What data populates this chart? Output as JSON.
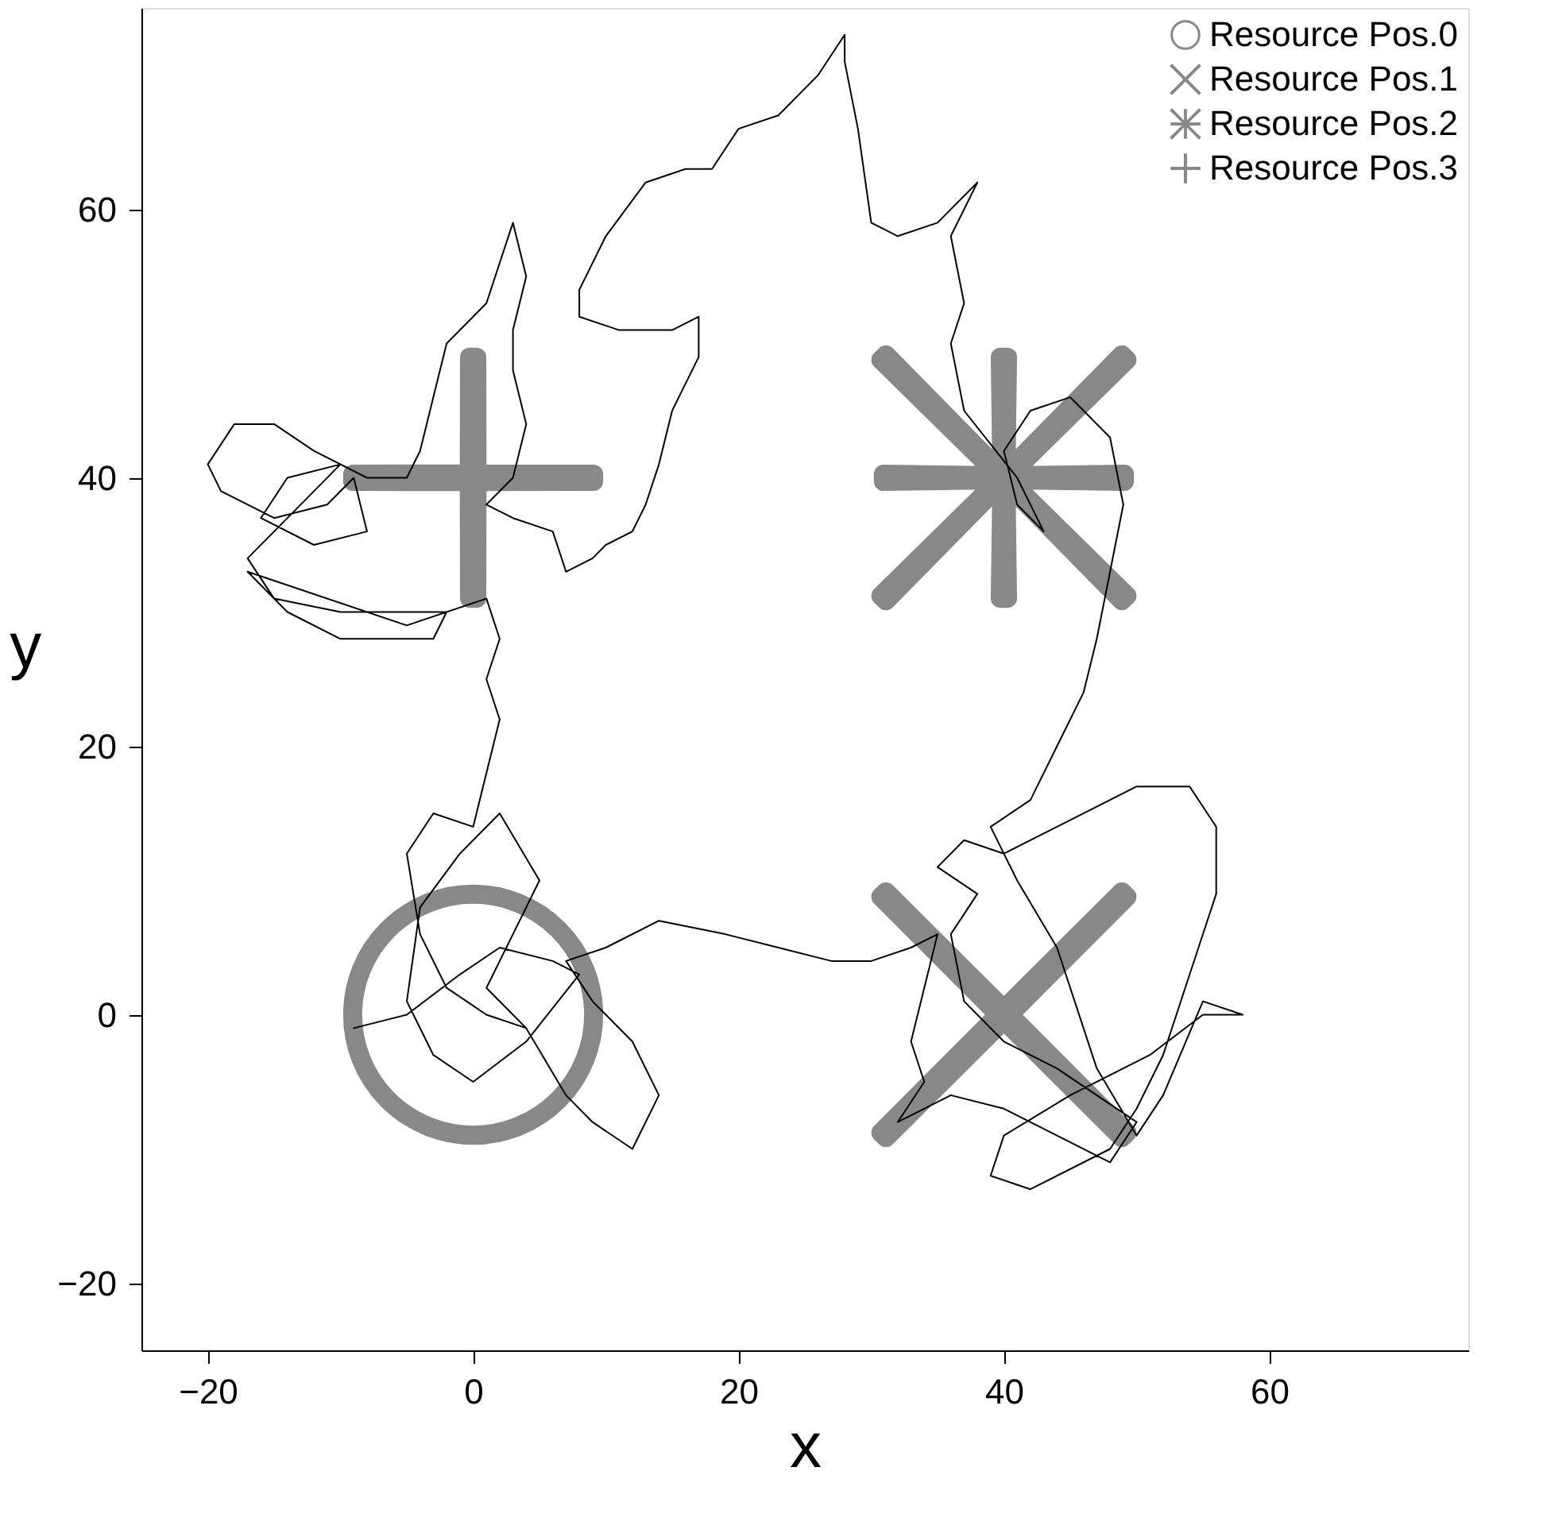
{
  "chart_data": {
    "type": "line",
    "xlabel": "x",
    "ylabel": "y",
    "xlim": [
      -25,
      75
    ],
    "ylim": [
      -25,
      75
    ],
    "xticks": [
      -20,
      0,
      20,
      40,
      60
    ],
    "yticks": [
      -20,
      0,
      20,
      40,
      60
    ],
    "grid": false,
    "legend": "top right",
    "series": [
      {
        "color": "#000000",
        "line_style": "solid",
        "marker": "none",
        "x": [
          -9,
          -5,
          -1,
          2,
          6,
          8,
          4,
          0,
          -3,
          -5,
          -4,
          -1,
          2,
          5,
          3,
          1,
          4,
          7,
          9,
          12,
          14,
          12,
          9,
          7,
          10,
          14,
          19,
          23,
          27,
          30,
          33,
          35,
          33,
          34,
          32,
          36,
          40,
          44,
          48,
          50,
          47,
          44,
          40,
          37,
          36,
          38,
          35,
          37,
          40,
          44,
          50,
          54,
          56,
          56,
          54,
          52,
          50,
          48,
          42,
          39,
          40,
          45,
          51,
          55,
          58,
          55,
          52,
          50,
          47,
          44,
          41,
          39,
          42,
          44,
          46,
          47,
          48,
          49,
          48,
          45,
          42,
          40,
          41,
          43,
          41,
          37,
          36,
          37,
          36,
          38,
          35,
          32,
          30,
          29,
          28,
          28,
          26,
          23,
          20,
          18,
          16,
          13,
          10,
          8,
          8,
          11,
          15,
          17,
          17,
          15,
          14,
          13,
          12,
          10,
          9,
          7,
          6,
          3,
          1,
          3,
          4,
          3,
          3,
          4,
          3,
          1,
          -2,
          -3,
          -4,
          -5,
          -8,
          -12,
          -15,
          -18,
          -20,
          -19,
          -15,
          -11,
          -9,
          -8,
          -12,
          -16,
          -14,
          -10,
          -17,
          -15,
          -10,
          -7,
          -4,
          -2,
          -3,
          -10,
          -14,
          -17,
          -5,
          1,
          2,
          1,
          2,
          1,
          0,
          -3,
          -5,
          -4,
          -2,
          1,
          4
        ],
        "values": [
          -1,
          0,
          3,
          5,
          4,
          3,
          -2,
          -5,
          -3,
          1,
          8,
          12,
          15,
          10,
          6,
          2,
          -1,
          -6,
          -8,
          -10,
          -6,
          -2,
          1,
          4,
          5,
          7,
          6,
          5,
          4,
          4,
          5,
          6,
          -2,
          -5,
          -8,
          -6,
          -7,
          -9,
          -11,
          -8,
          -6,
          -4,
          -2,
          1,
          6,
          9,
          11,
          13,
          12,
          14,
          17,
          17,
          14,
          9,
          3,
          -3,
          -7,
          -10,
          -13,
          -12,
          -9,
          -6,
          -3,
          0,
          0,
          1,
          -6,
          -9,
          -4,
          5,
          10,
          14,
          16,
          20,
          24,
          28,
          33,
          38,
          43,
          46,
          45,
          42,
          38,
          36,
          40,
          45,
          50,
          53,
          58,
          62,
          59,
          58,
          59,
          66,
          71,
          73,
          70,
          67,
          66,
          63,
          63,
          62,
          58,
          54,
          52,
          51,
          51,
          52,
          49,
          45,
          41,
          38,
          36,
          35,
          34,
          33,
          36,
          37,
          38,
          40,
          44,
          48,
          51,
          55,
          59,
          53,
          50,
          46,
          42,
          40,
          40,
          42,
          44,
          44,
          41,
          39,
          37,
          38,
          40,
          36,
          35,
          37,
          40,
          41,
          34,
          31,
          30,
          30,
          30,
          30,
          28,
          28,
          30,
          33,
          29,
          31,
          28,
          25,
          22,
          18,
          14,
          15,
          12,
          6,
          2,
          0,
          -1
        ]
      },
      {
        "type": "scatter",
        "name": "Resource Pos.0",
        "color": "#888888",
        "marker": "circle",
        "x": [
          0
        ],
        "values": [
          0
        ]
      },
      {
        "type": "scatter",
        "name": "Resource Pos.1",
        "color": "#888888",
        "marker": "cross",
        "x": [
          40
        ],
        "values": [
          0
        ]
      },
      {
        "type": "scatter",
        "name": "Resource Pos.2",
        "color": "#888888",
        "marker": "star",
        "x": [
          40
        ],
        "values": [
          40
        ]
      },
      {
        "type": "scatter",
        "name": "Resource Pos.3",
        "color": "#888888",
        "marker": "plus",
        "x": [
          0
        ],
        "values": [
          40
        ]
      }
    ]
  }
}
